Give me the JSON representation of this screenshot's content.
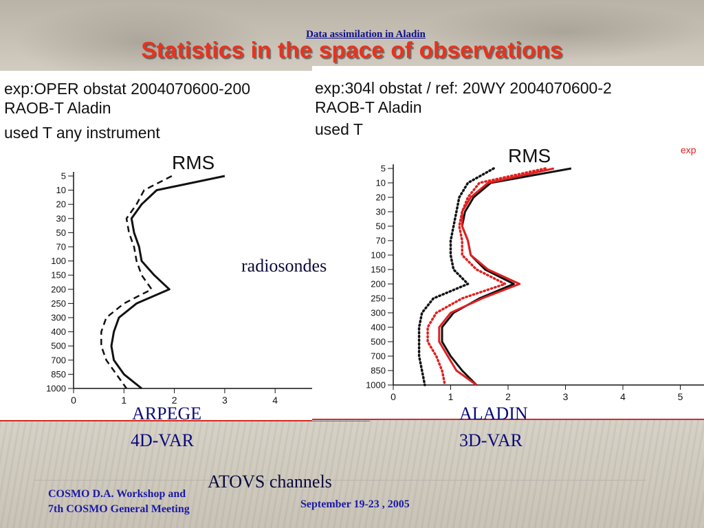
{
  "header": {
    "link_text": "Data assimilation in Aladin",
    "title": "Statistics in the space of observations"
  },
  "left_panel": {
    "lines": [
      "exp:OPER obstat 2004070600-200",
      "RAOB-T  Aladin",
      "used T any instrument"
    ]
  },
  "right_panel": {
    "lines": [
      "exp:304l obstat / ref: 20WY 2004070600-2",
      "RAOB-T  Aladin",
      "used T"
    ],
    "legend_fragment": "exp"
  },
  "captions": {
    "radiosondes": "radiosondes",
    "arpege": "ARPEGE",
    "arpege_method": "4D-VAR",
    "aladin": "ALADIN",
    "aladin_method": "3D-VAR",
    "atovs": "ATOVS channels"
  },
  "footer": {
    "line1": "COSMO D.A. Workshop and",
    "line2": "7th COSMO General Meeting",
    "dates": "September 19-23 , 2005"
  },
  "colors": {
    "title": "#e8321e",
    "caption": "#0a0a7a",
    "footer": "#1a1aa6",
    "red_series": "#e02020",
    "black_series": "#111111"
  },
  "chart_data": [
    {
      "type": "line",
      "title": "RMS",
      "levels": [
        "5",
        "10",
        "20",
        "30",
        "50",
        "70",
        "100",
        "150",
        "200",
        "250",
        "300",
        "400",
        "500",
        "700",
        "850",
        "1000"
      ],
      "x_ticks": [
        0,
        1,
        2,
        3,
        4
      ],
      "xlim": [
        0,
        4.8
      ],
      "series": [
        {
          "style": "solid",
          "color": "#111111",
          "values": [
            3.0,
            1.65,
            1.35,
            1.15,
            1.2,
            1.3,
            1.35,
            1.6,
            1.9,
            1.25,
            0.9,
            0.8,
            0.75,
            0.8,
            1.0,
            1.35
          ]
        },
        {
          "style": "dashed",
          "color": "#111111",
          "values": [
            1.95,
            1.4,
            1.25,
            1.05,
            1.1,
            1.2,
            1.25,
            1.35,
            1.55,
            1.0,
            0.65,
            0.55,
            0.55,
            0.65,
            0.85,
            1.05
          ]
        }
      ]
    },
    {
      "type": "line",
      "title": "RMS",
      "levels": [
        "5",
        "10",
        "20",
        "30",
        "50",
        "70",
        "100",
        "150",
        "200",
        "250",
        "300",
        "400",
        "500",
        "700",
        "850",
        "1000"
      ],
      "x_ticks": [
        0,
        1,
        2,
        3,
        4,
        5
      ],
      "xlim": [
        0,
        5
      ],
      "series": [
        {
          "style": "solid",
          "color": "#111111",
          "values": [
            3.1,
            1.7,
            1.4,
            1.25,
            1.2,
            1.3,
            1.35,
            1.6,
            2.1,
            1.5,
            1.05,
            0.85,
            0.85,
            1.0,
            1.2,
            1.45
          ]
        },
        {
          "style": "solid",
          "color": "#e02020",
          "values": [
            2.8,
            1.65,
            1.35,
            1.2,
            1.2,
            1.3,
            1.35,
            1.65,
            2.2,
            1.55,
            1.0,
            0.8,
            0.8,
            0.95,
            1.1,
            1.45
          ]
        },
        {
          "style": "dotted",
          "color": "#111111",
          "values": [
            1.75,
            1.3,
            1.15,
            1.1,
            1.05,
            1.0,
            1.0,
            1.05,
            1.3,
            0.7,
            0.5,
            0.45,
            0.45,
            0.45,
            0.5,
            0.55
          ]
        },
        {
          "style": "dotted",
          "color": "#e02020",
          "values": [
            2.65,
            1.5,
            1.3,
            1.2,
            1.15,
            1.2,
            1.2,
            1.45,
            1.95,
            1.2,
            0.75,
            0.6,
            0.6,
            0.75,
            0.85,
            0.9
          ]
        }
      ]
    }
  ]
}
